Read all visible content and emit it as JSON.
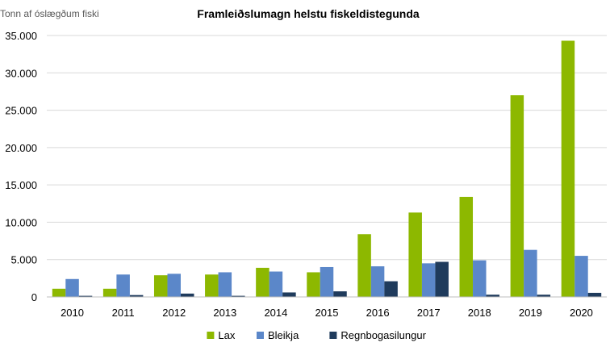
{
  "chart_data": {
    "type": "bar",
    "title": "Framleiðslumagn helstu fiskeldistegunda",
    "ylabel": "Tonn af óslægðum fiski",
    "xlabel": "",
    "categories": [
      "2010",
      "2011",
      "2012",
      "2013",
      "2014",
      "2015",
      "2016",
      "2017",
      "2018",
      "2019",
      "2020"
    ],
    "series": [
      {
        "name": "Lax",
        "color": "#8DB800",
        "values": [
          1100,
          1100,
          2900,
          3000,
          3900,
          3300,
          8400,
          11300,
          13400,
          27000,
          34300
        ]
      },
      {
        "name": "Bleikja",
        "color": "#5B87C9",
        "values": [
          2400,
          3000,
          3100,
          3300,
          3400,
          4000,
          4100,
          4500,
          4900,
          6300,
          5500
        ]
      },
      {
        "name": "Regnbogasilungur",
        "color": "#1F3B5C",
        "values": [
          150,
          250,
          450,
          150,
          600,
          750,
          2100,
          4700,
          300,
          300,
          550
        ]
      }
    ],
    "ylim": [
      0,
      35000
    ],
    "yticks": [
      0,
      5000,
      10000,
      15000,
      20000,
      25000,
      30000,
      35000
    ],
    "ytick_labels": [
      "0",
      "5.000",
      "10.000",
      "15.000",
      "20.000",
      "25.000",
      "30.000",
      "35.000"
    ],
    "grid": true,
    "legend_position": "bottom-center"
  }
}
